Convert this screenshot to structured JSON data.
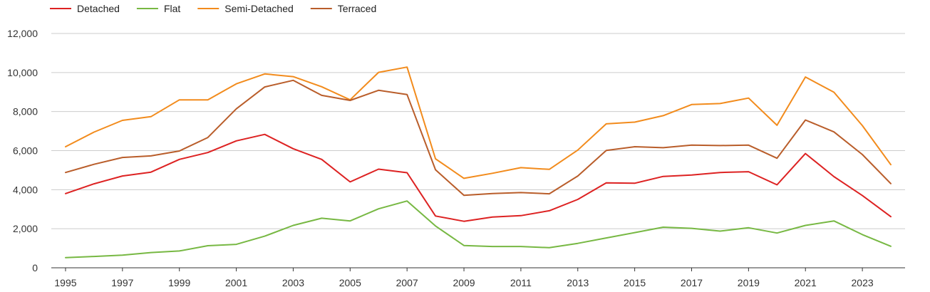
{
  "chart_data": {
    "type": "line",
    "title": "",
    "xlabel": "",
    "ylabel": "",
    "x": [
      1995,
      1996,
      1997,
      1998,
      1999,
      2000,
      2001,
      2002,
      2003,
      2004,
      2005,
      2006,
      2007,
      2008,
      2009,
      2010,
      2011,
      2012,
      2013,
      2014,
      2015,
      2016,
      2017,
      2018,
      2019,
      2020,
      2021,
      2022,
      2023,
      2024
    ],
    "xlim": [
      1994.5,
      2024.5
    ],
    "ylim": [
      0,
      12000
    ],
    "x_ticks": [
      "1995",
      "1997",
      "1999",
      "2001",
      "2003",
      "2005",
      "2007",
      "2009",
      "2011",
      "2013",
      "2015",
      "2017",
      "2019",
      "2021",
      "2023"
    ],
    "y_ticks": [
      "0",
      "2,000",
      "4,000",
      "6,000",
      "8,000",
      "10,000",
      "12,000"
    ],
    "grid": true,
    "legend_position": "top-left",
    "series": [
      {
        "name": "Detached",
        "color": "#dd2222",
        "values": [
          3800,
          4300,
          4700,
          4900,
          5550,
          5900,
          6500,
          6830,
          6100,
          5550,
          4400,
          5050,
          4870,
          2650,
          2380,
          2600,
          2670,
          2920,
          3500,
          4350,
          4330,
          4680,
          4750,
          4880,
          4920,
          4250,
          5850,
          4670,
          3700,
          2620
        ]
      },
      {
        "name": "Flat",
        "color": "#77b843",
        "values": [
          520,
          580,
          650,
          780,
          860,
          1130,
          1200,
          1620,
          2170,
          2540,
          2400,
          3020,
          3420,
          2140,
          1140,
          1090,
          1090,
          1030,
          1250,
          1530,
          1800,
          2080,
          2020,
          1880,
          2050,
          1780,
          2170,
          2400,
          1700,
          1100
        ]
      },
      {
        "name": "Semi-Detached",
        "color": "#f28b1c",
        "values": [
          6200,
          6950,
          7550,
          7740,
          8600,
          8600,
          9420,
          9930,
          9790,
          9270,
          8600,
          10010,
          10280,
          5580,
          4580,
          4840,
          5130,
          5040,
          6030,
          7370,
          7460,
          7790,
          8360,
          8410,
          8690,
          7300,
          9770,
          8990,
          7280,
          5280
        ]
      },
      {
        "name": "Terraced",
        "color": "#b95d2a",
        "values": [
          4880,
          5300,
          5650,
          5730,
          5980,
          6670,
          8140,
          9260,
          9600,
          8830,
          8570,
          9090,
          8870,
          5020,
          3710,
          3800,
          3850,
          3790,
          4700,
          6010,
          6200,
          6150,
          6280,
          6260,
          6280,
          5610,
          7570,
          6960,
          5800,
          4310
        ]
      }
    ]
  }
}
